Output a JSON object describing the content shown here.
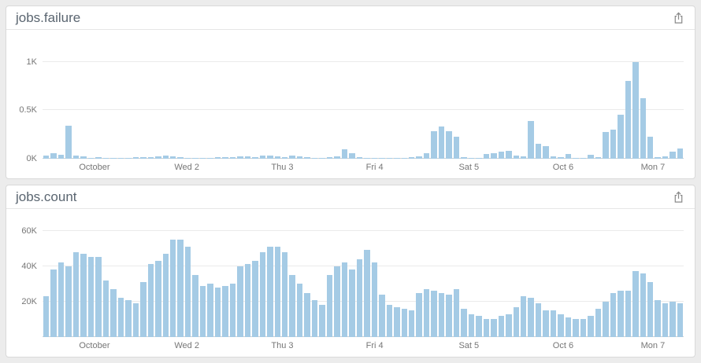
{
  "page": {
    "background": "#ececec"
  },
  "panels": [
    {
      "title": "jobs.failure",
      "export_icon": "share-icon"
    },
    {
      "title": "jobs.count",
      "export_icon": "share-icon"
    }
  ],
  "chart_data": [
    {
      "type": "bar",
      "title": "jobs.failure",
      "xlabel": "",
      "ylabel": "",
      "bar_color": "#a5cbe5",
      "grid": "horizontal",
      "legend": "none",
      "ylim": [
        0,
        1250
      ],
      "yticks": [
        {
          "value": 0,
          "label": "0K"
        },
        {
          "value": 500,
          "label": "0.5K"
        },
        {
          "value": 1000,
          "label": "1K"
        }
      ],
      "xticks": [
        {
          "pos": 0.081,
          "label": "October"
        },
        {
          "pos": 0.225,
          "label": "Wed 2"
        },
        {
          "pos": 0.374,
          "label": "Thu 3"
        },
        {
          "pos": 0.518,
          "label": "Fri 4"
        },
        {
          "pos": 0.665,
          "label": "Sat 5"
        },
        {
          "pos": 0.812,
          "label": "Oct 6"
        },
        {
          "pos": 0.952,
          "label": "Mon 7"
        }
      ],
      "values": [
        30,
        55,
        40,
        340,
        25,
        20,
        8,
        10,
        5,
        4,
        4,
        6,
        10,
        15,
        12,
        18,
        25,
        20,
        15,
        8,
        6,
        5,
        8,
        12,
        15,
        12,
        18,
        22,
        15,
        25,
        30,
        20,
        15,
        28,
        20,
        12,
        8,
        5,
        10,
        18,
        90,
        50,
        10,
        5,
        3,
        3,
        2,
        3,
        5,
        10,
        20,
        55,
        280,
        330,
        285,
        220,
        15,
        8,
        5,
        45,
        55,
        70,
        80,
        30,
        20,
        385,
        150,
        125,
        20,
        10,
        45,
        8,
        5,
        40,
        12,
        270,
        300,
        450,
        800,
        1000,
        620,
        220,
        15,
        20,
        70,
        100
      ]
    },
    {
      "type": "bar",
      "title": "jobs.count",
      "xlabel": "",
      "ylabel": "",
      "bar_color": "#a5cbe5",
      "grid": "horizontal",
      "legend": "none",
      "ylim": [
        0,
        68000
      ],
      "yticks": [
        {
          "value": 0,
          "label": ""
        },
        {
          "value": 20000,
          "label": "20K"
        },
        {
          "value": 40000,
          "label": "40K"
        },
        {
          "value": 60000,
          "label": "60K"
        }
      ],
      "xticks": [
        {
          "pos": 0.081,
          "label": "October"
        },
        {
          "pos": 0.225,
          "label": "Wed 2"
        },
        {
          "pos": 0.374,
          "label": "Thu 3"
        },
        {
          "pos": 0.518,
          "label": "Fri 4"
        },
        {
          "pos": 0.665,
          "label": "Sat 5"
        },
        {
          "pos": 0.812,
          "label": "Oct 6"
        },
        {
          "pos": 0.952,
          "label": "Mon 7"
        }
      ],
      "values": [
        23000,
        38000,
        42000,
        40000,
        48000,
        47000,
        45000,
        45000,
        32000,
        27000,
        22000,
        21000,
        19000,
        31000,
        41000,
        43000,
        47000,
        55000,
        55000,
        51000,
        35000,
        29000,
        30000,
        28000,
        29000,
        30000,
        40000,
        41000,
        43000,
        48000,
        51000,
        51000,
        48000,
        35000,
        30000,
        25000,
        21000,
        18000,
        35000,
        40000,
        42000,
        38000,
        44000,
        49000,
        42000,
        24000,
        18000,
        17000,
        16000,
        15000,
        25000,
        27000,
        26000,
        25000,
        24000,
        27000,
        16000,
        13000,
        12000,
        10000,
        10000,
        12000,
        13000,
        17000,
        23000,
        22000,
        19000,
        15000,
        15000,
        13000,
        11000,
        10000,
        10000,
        12000,
        16000,
        20000,
        25000,
        26000,
        26000,
        37000,
        36000,
        31000,
        21000,
        19000,
        20000,
        19000
      ]
    }
  ]
}
